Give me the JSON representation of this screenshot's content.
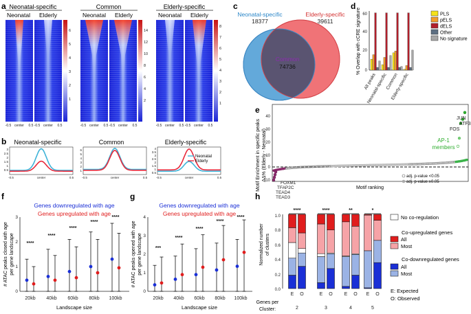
{
  "panels": {
    "a": {
      "letter": "a",
      "groups": [
        {
          "title": "Neonatal-specific",
          "cols": [
            "Neonatal",
            "Elderly"
          ]
        },
        {
          "title": "Common",
          "cols": [
            "Neonatal",
            "Elderly"
          ]
        },
        {
          "title": "Elderly-specific",
          "cols": [
            "Neonatal",
            "Elderly"
          ]
        }
      ],
      "xticks": [
        "-0.5",
        "center",
        "0.5"
      ],
      "scale1": [
        "6",
        "5",
        "4",
        "3",
        "2",
        "1"
      ],
      "scale2": [
        "14",
        "12",
        "10",
        "8",
        "6",
        "4",
        "2"
      ],
      "scale3": [
        "8",
        "7",
        "6",
        "5",
        "4",
        "3",
        "2",
        "1"
      ]
    },
    "b": {
      "letter": "b",
      "titles": [
        "Neonatal-specific",
        "Common",
        "Elderly-specific"
      ],
      "yticks1": [
        "3",
        "2.5",
        "2",
        "1.5",
        "1",
        "0.5"
      ],
      "yticks2": [
        "6",
        "5",
        "4",
        "3",
        "2",
        "1"
      ],
      "yticks3": [
        "4",
        "3.5",
        "3",
        "2.5",
        "2",
        "1.5",
        "1",
        "0.5"
      ],
      "xticks": [
        "-0.5",
        "center",
        "0.5"
      ],
      "legend": [
        "Neonatal",
        "Elderly"
      ],
      "colors": {
        "neonatal": "#3fb3d8",
        "elderly": "#e8283a"
      }
    },
    "c": {
      "letter": "c",
      "left_label": "Neonatal-specific",
      "left_count": "18377",
      "right_label": "Elderly-specific",
      "right_count": "39611",
      "center_label": "Common",
      "center_count": "74736"
    },
    "d": {
      "letter": "d",
      "ylabel": "% Overlap with cCRE signature",
      "yticks": [
        "60",
        "40",
        "20",
        "0"
      ],
      "categories": [
        "All peaks",
        "Neonatal-specific",
        "Common",
        "Elderly-specific"
      ],
      "legend": [
        "PLS",
        "pELS",
        "dELS",
        "Other",
        "No signature"
      ],
      "colors": [
        "#f5e21b",
        "#f39c2c",
        "#b11f2b",
        "#5d6f82",
        "#a6a6a6"
      ]
    },
    "e": {
      "letter": "e",
      "ylabel1": "Motif Enrichment in specific peaks",
      "ylabel2": "ΔΔ% (Elderly - Neonatal)",
      "yticks": [
        "40",
        "30",
        "20",
        "10",
        "0",
        "-10"
      ],
      "xlabel": "Motif ranking",
      "top_labels": [
        "JUN",
        "ATF3",
        "FOS"
      ],
      "ap1_label": "AP-1",
      "ap1_label2": "members",
      "bottom_labels": [
        "FOXM1",
        "TFAP2C",
        "TEAD4",
        "TEAD3"
      ],
      "legend": [
        "adj. p-value <0.05",
        "adj. p-value ≥0.05"
      ]
    },
    "f": {
      "letter": "f",
      "ylabel1": "# ATAC peaks closed with age",
      "ylabel2": "per gene landscape",
      "legend_down": "Genes downregulated with age",
      "legend_up": "Genes upregulated with age",
      "yticks": [
        "3",
        "2",
        "1",
        "0"
      ],
      "categories": [
        "20kb",
        "40kb",
        "60kb",
        "80kb",
        "100kb"
      ],
      "stars": [
        "****",
        "****",
        "****",
        "****",
        "****"
      ],
      "xlabel": "Landscape size"
    },
    "g": {
      "letter": "g",
      "ylabel1": "# ATAC peaks opened with age",
      "ylabel2": "per gene landscape",
      "legend_down": "Genes downregulated with age",
      "legend_up": "Genes upregulated with age",
      "yticks": [
        "4",
        "3",
        "2",
        "1",
        "0"
      ],
      "categories": [
        "20kb",
        "40kb",
        "60kb",
        "80kb",
        "100kb"
      ],
      "stars": [
        "***",
        "****",
        "****",
        "****",
        "****"
      ],
      "xlabel": "Landscape size"
    },
    "h": {
      "letter": "h",
      "ylabel1": "Normalized number",
      "ylabel2": "of clusters",
      "yticks": [
        "1.0",
        "0.8",
        "0.6",
        "0.4",
        "0.2",
        "0.0"
      ],
      "groups": [
        "2",
        "3",
        "4",
        "5"
      ],
      "stars": [
        "****",
        "****",
        "**",
        "*"
      ],
      "eo": [
        "E",
        "O"
      ],
      "xlabel1": "Genes per",
      "xlabel2": "Cluster:",
      "legend": {
        "nocoreg": "No co-regulation",
        "up_title": "Co-upregulated genes",
        "up_all": "All",
        "up_most": "Most",
        "down_title": "Co-downregulated genes",
        "down_all": "All",
        "down_most": "Most",
        "e_note": "E: Expected",
        "o_note": "O: Observed"
      }
    }
  },
  "chart_data": [
    {
      "panel": "b",
      "type": "line",
      "title": "Neonatal-specific",
      "ylim": [
        0,
        3.3
      ],
      "x": [
        -0.5,
        -0.25,
        0,
        0.25,
        0.5
      ],
      "series": [
        {
          "name": "Neonatal",
          "values": [
            0.5,
            1.0,
            3.1,
            1.0,
            0.5
          ]
        },
        {
          "name": "Elderly",
          "values": [
            0.4,
            0.7,
            1.6,
            0.7,
            0.4
          ]
        }
      ]
    },
    {
      "panel": "b",
      "type": "line",
      "title": "Common",
      "ylim": [
        0,
        6.5
      ],
      "x": [
        -0.5,
        -0.25,
        0,
        0.25,
        0.5
      ],
      "series": [
        {
          "name": "Neonatal",
          "values": [
            1.2,
            2.0,
            6.2,
            2.0,
            1.2
          ]
        },
        {
          "name": "Elderly",
          "values": [
            1.0,
            1.8,
            5.7,
            1.8,
            1.0
          ]
        }
      ]
    },
    {
      "panel": "b",
      "type": "line",
      "title": "Elderly-specific",
      "ylim": [
        0,
        4.2
      ],
      "x": [
        -0.5,
        -0.25,
        0,
        0.25,
        0.5
      ],
      "series": [
        {
          "name": "Neonatal",
          "values": [
            0.5,
            0.8,
            2.0,
            0.8,
            0.5
          ]
        },
        {
          "name": "Elderly",
          "values": [
            0.7,
            1.2,
            3.9,
            1.2,
            0.7
          ]
        }
      ]
    },
    {
      "panel": "c",
      "type": "venn",
      "sets": [
        {
          "name": "Neonatal-specific",
          "value": 18377
        },
        {
          "name": "Common",
          "value": 74736
        },
        {
          "name": "Elderly-specific",
          "value": 39611
        }
      ]
    },
    {
      "panel": "d",
      "type": "bar",
      "ylabel": "% Overlap with cCRE signature",
      "ylim": [
        0,
        65
      ],
      "categories": [
        "All peaks",
        "Neonatal-specific",
        "Common",
        "Elderly-specific"
      ],
      "series": [
        {
          "name": "PLS",
          "values": [
            12,
            6,
            19,
            1
          ]
        },
        {
          "name": "pELS",
          "values": [
            17,
            14,
            21,
            5
          ]
        },
        {
          "name": "dELS",
          "values": [
            63,
            63,
            63,
            63
          ]
        },
        {
          "name": "Other",
          "values": [
            3,
            3,
            3,
            3
          ]
        },
        {
          "name": "No signature",
          "values": [
            10,
            16,
            4,
            22
          ]
        }
      ]
    },
    {
      "panel": "f",
      "type": "scatter",
      "ylabel": "# ATAC peaks closed with age per gene landscape",
      "ylim": [
        0,
        3
      ],
      "categories": [
        "20kb",
        "40kb",
        "60kb",
        "80kb",
        "100kb"
      ],
      "series": [
        {
          "name": "Genes downregulated with age",
          "values": [
            0.45,
            0.6,
            0.8,
            1.0,
            1.3
          ],
          "low": [
            0,
            0,
            0,
            0,
            0
          ],
          "high": [
            1.3,
            1.7,
            2.1,
            2.4,
            2.75
          ]
        },
        {
          "name": "Genes upregulated with age",
          "values": [
            0.3,
            0.45,
            0.55,
            0.75,
            0.95
          ],
          "low": [
            0,
            0,
            0,
            0,
            0
          ],
          "high": [
            1.0,
            1.45,
            1.8,
            2.1,
            2.35
          ]
        }
      ]
    },
    {
      "panel": "g",
      "type": "scatter",
      "ylabel": "# ATAC peaks opened with age per gene landscape",
      "ylim": [
        0,
        4
      ],
      "categories": [
        "20kb",
        "40kb",
        "60kb",
        "80kb",
        "100kb"
      ],
      "series": [
        {
          "name": "Genes downregulated with age",
          "values": [
            0.35,
            0.65,
            0.9,
            1.15,
            1.35
          ],
          "low": [
            0,
            0,
            0,
            0,
            0
          ],
          "high": [
            1.4,
            1.9,
            2.3,
            2.6,
            2.8
          ]
        },
        {
          "name": "Genes upregulated with age",
          "values": [
            0.45,
            0.9,
            1.3,
            1.7,
            2.1
          ],
          "low": [
            0,
            0,
            0,
            0,
            0
          ],
          "high": [
            1.85,
            2.55,
            3.05,
            3.55,
            3.85
          ]
        }
      ]
    },
    {
      "panel": "h",
      "type": "bar",
      "ylabel": "Normalized number of clusters",
      "ylim": [
        0,
        1
      ],
      "categories": [
        "2 E",
        "2 O",
        "3 E",
        "3 O",
        "4 E",
        "4 O",
        "5 E",
        "5 O"
      ],
      "series": [
        {
          "name": "Co-downregulated All",
          "values": [
            0.18,
            0.3,
            0.08,
            0.27,
            0.03,
            0.18,
            0.01,
            0.35
          ]
        },
        {
          "name": "Co-downregulated Most",
          "values": [
            0.23,
            0.18,
            0.35,
            0.2,
            0.4,
            0.28,
            0.5,
            0.3
          ]
        },
        {
          "name": "No co-regulation",
          "values": [
            0.21,
            0.06,
            0.04,
            0.01,
            0.01,
            0.01,
            0.0,
            0.0
          ]
        },
        {
          "name": "Co-upregulated Most",
          "values": [
            0.2,
            0.21,
            0.4,
            0.31,
            0.46,
            0.37,
            0.48,
            0.27
          ]
        },
        {
          "name": "Co-upregulated All",
          "values": [
            0.18,
            0.25,
            0.13,
            0.21,
            0.1,
            0.16,
            0.01,
            0.08
          ]
        }
      ]
    },
    {
      "panel": "e",
      "type": "scatter",
      "ylabel": "Motif Enrichment in specific peaks ΔΔ% (Elderly - Neonatal)",
      "ylim": [
        -12,
        45
      ],
      "xlabel": "Motif ranking",
      "highlights": [
        {
          "name": "JUN",
          "value": 39
        },
        {
          "name": "ATF3",
          "value": 34
        },
        {
          "name": "FOS",
          "value": 31
        },
        {
          "name": "FOXM1",
          "value": -5
        },
        {
          "name": "TFAP2C",
          "value": -7
        },
        {
          "name": "TEAD4",
          "value": -9
        },
        {
          "name": "TEAD3",
          "value": -11
        }
      ]
    }
  ]
}
